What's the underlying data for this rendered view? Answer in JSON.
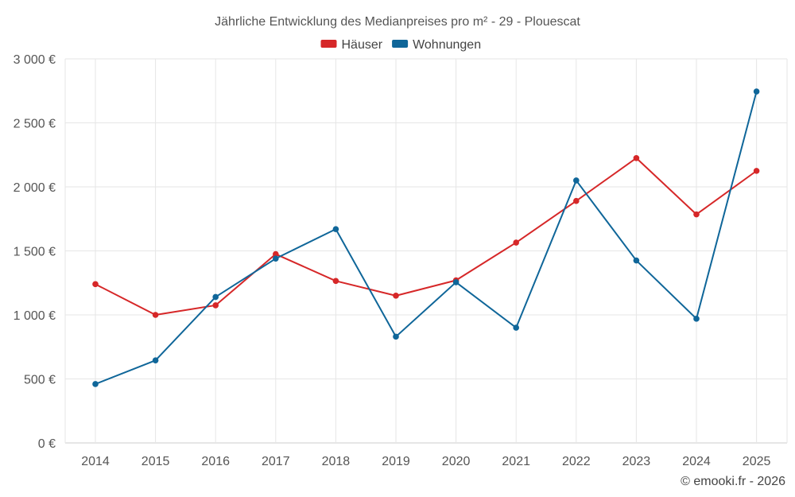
{
  "chart_data": {
    "type": "line",
    "title": "Jährliche Entwicklung des Medianpreises pro m² - 29 - Plouescat",
    "xlabel": "",
    "ylabel": "",
    "categories": [
      "2014",
      "2015",
      "2016",
      "2017",
      "2018",
      "2019",
      "2020",
      "2021",
      "2022",
      "2023",
      "2024",
      "2025"
    ],
    "ylim": [
      0,
      3000
    ],
    "yticks": [
      0,
      500,
      1000,
      1500,
      2000,
      2500,
      3000
    ],
    "ytick_labels": [
      "0 €",
      "500 €",
      "1 000 €",
      "1 500 €",
      "2 000 €",
      "2 500 €",
      "3 000 €"
    ],
    "grid": true,
    "legend_position": "top-center",
    "series": [
      {
        "name": "Häuser",
        "color": "#d62728",
        "values": [
          1240,
          1000,
          1075,
          1475,
          1265,
          1150,
          1270,
          1565,
          1890,
          2225,
          1785,
          2125
        ]
      },
      {
        "name": "Wohnungen",
        "color": "#0f6699",
        "values": [
          460,
          645,
          1140,
          1440,
          1670,
          830,
          1255,
          900,
          2050,
          1425,
          970,
          2745
        ]
      }
    ]
  },
  "credit": "© emooki.fr - 2026"
}
